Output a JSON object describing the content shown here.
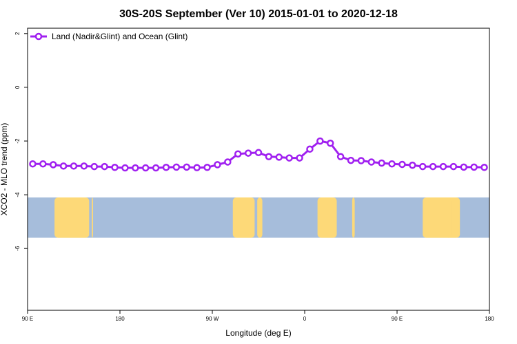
{
  "chart_data": {
    "type": "line",
    "title": "30S-20S September (Ver 10)   2015-01-01 to 2020-12-18",
    "xlabel": "Longitude (deg E)",
    "ylabel": "XCO2 - MLO trend (ppm)",
    "xlim": [
      90,
      450
    ],
    "ylim": [
      -8.3,
      2.2
    ],
    "x_ticks": [
      {
        "value": 90,
        "label": "90 E"
      },
      {
        "value": 162,
        "label": "180"
      },
      {
        "value": 234,
        "label": "90 W"
      },
      {
        "value": 306,
        "label": "0"
      },
      {
        "value": 378,
        "label": "90 E"
      },
      {
        "value": 450,
        "label": "180"
      }
    ],
    "y_ticks": [
      {
        "value": 2,
        "label": "2"
      },
      {
        "value": 0,
        "label": "0"
      },
      {
        "value": -2,
        "label": "-2"
      },
      {
        "value": -4,
        "label": "-4"
      },
      {
        "value": -6,
        "label": "-6"
      }
    ],
    "grid": false,
    "legend_position": "top-left",
    "series": [
      {
        "name": "Land (Nadir&Glint) and Ocean (Glint)",
        "color": "#A020F0",
        "x": [
          94,
          102,
          110,
          118,
          126,
          134,
          142,
          150,
          158,
          166,
          174,
          182,
          190,
          198,
          206,
          214,
          222,
          230,
          238,
          246,
          254,
          262,
          270,
          278,
          286,
          294,
          302,
          310,
          318,
          326,
          334,
          342,
          350,
          358,
          366,
          374,
          382,
          390,
          398,
          406,
          414,
          422,
          430,
          438,
          446
        ],
        "values": [
          -2.85,
          -2.85,
          -2.88,
          -2.93,
          -2.93,
          -2.93,
          -2.95,
          -2.95,
          -2.98,
          -3.0,
          -3.0,
          -3.0,
          -3.0,
          -2.98,
          -2.97,
          -2.97,
          -2.99,
          -2.98,
          -2.88,
          -2.78,
          -2.48,
          -2.45,
          -2.43,
          -2.58,
          -2.6,
          -2.63,
          -2.63,
          -2.3,
          -2.0,
          -2.08,
          -2.58,
          -2.72,
          -2.73,
          -2.78,
          -2.82,
          -2.85,
          -2.87,
          -2.9,
          -2.95,
          -2.95,
          -2.95,
          -2.95,
          -2.97,
          -2.97,
          -2.98
        ]
      }
    ],
    "land_mask": {
      "y_range": [
        -5.6,
        -4.1
      ],
      "ocean_color": "#A6BDDB",
      "land_color": "#FDD978",
      "land_spans": [
        [
          111,
          138
        ],
        [
          140,
          141
        ],
        [
          250,
          267
        ],
        [
          269,
          273
        ],
        [
          316,
          331
        ],
        [
          327,
          328
        ],
        [
          343,
          345
        ],
        [
          398,
          427
        ],
        [
          416,
          420
        ]
      ]
    }
  }
}
